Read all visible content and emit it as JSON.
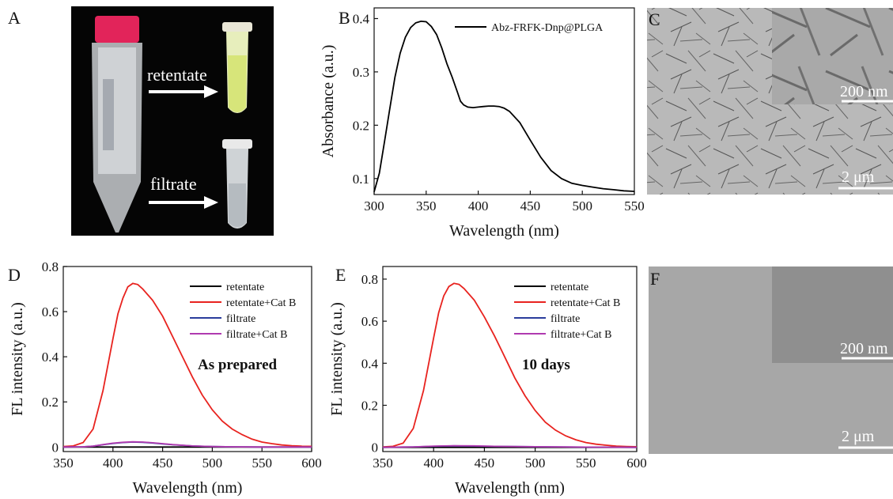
{
  "panels": {
    "A": {
      "letter": "A",
      "retentate_label": "retentate",
      "filtrate_label": "filtrate"
    },
    "B": {
      "letter": "B"
    },
    "C": {
      "letter": "C",
      "inset_scale": "200 nm",
      "main_scale": "2 μm"
    },
    "D": {
      "letter": "D",
      "annotation": "As prepared"
    },
    "E": {
      "letter": "E",
      "annotation": "10 days"
    },
    "F": {
      "letter": "F",
      "inset_scale": "200 nm",
      "main_scale": "2 μm"
    }
  },
  "chart_data": [
    {
      "id": "B",
      "type": "line",
      "xlabel": "Wavelength (nm)",
      "ylabel": "Absorbance (a.u.)",
      "xlim": [
        300,
        550
      ],
      "ylim": [
        0.07,
        0.42
      ],
      "xticks": [
        300,
        350,
        400,
        450,
        500,
        550
      ],
      "yticks": [
        0.1,
        0.2,
        0.3,
        0.4
      ],
      "ytick_labels": [
        "0.1",
        "0.2",
        "0.3",
        "0.4"
      ],
      "legend_position": "top-right",
      "series": [
        {
          "name": "Abz-FRFK-Dnp@PLGA",
          "color": "#000000",
          "x": [
            300,
            305,
            310,
            315,
            320,
            325,
            330,
            335,
            340,
            345,
            350,
            355,
            360,
            365,
            370,
            375,
            380,
            383,
            386,
            390,
            395,
            400,
            405,
            410,
            415,
            420,
            425,
            430,
            440,
            450,
            460,
            470,
            480,
            490,
            500,
            510,
            520,
            530,
            540,
            550
          ],
          "y": [
            0.075,
            0.11,
            0.17,
            0.23,
            0.29,
            0.335,
            0.365,
            0.383,
            0.392,
            0.395,
            0.394,
            0.385,
            0.37,
            0.345,
            0.315,
            0.29,
            0.262,
            0.245,
            0.238,
            0.234,
            0.233,
            0.234,
            0.235,
            0.236,
            0.236,
            0.235,
            0.232,
            0.226,
            0.205,
            0.172,
            0.14,
            0.115,
            0.1,
            0.091,
            0.087,
            0.084,
            0.081,
            0.079,
            0.077,
            0.076
          ]
        }
      ]
    },
    {
      "id": "D",
      "type": "line",
      "xlabel": "Wavelength (nm)",
      "ylabel": "FL intensity (a.u.)",
      "xlim": [
        350,
        600
      ],
      "ylim": [
        -0.02,
        0.8
      ],
      "xticks": [
        350,
        400,
        450,
        500,
        550,
        600
      ],
      "yticks": [
        0,
        0.2,
        0.4,
        0.6,
        0.8
      ],
      "ytick_labels": [
        "0",
        "0.2",
        "0.4",
        "0.6",
        "0.8"
      ],
      "legend_position": "top-right",
      "series": [
        {
          "name": "retentate",
          "color": "#000000",
          "x": [
            350,
            400,
            450,
            500,
            550,
            600
          ],
          "y": [
            0,
            0,
            0,
            0,
            0,
            0
          ]
        },
        {
          "name": "retentate+Cat B",
          "color": "#e8231f",
          "x": [
            350,
            360,
            370,
            380,
            390,
            400,
            405,
            410,
            415,
            420,
            425,
            430,
            440,
            450,
            460,
            470,
            480,
            490,
            500,
            510,
            520,
            530,
            540,
            550,
            560,
            570,
            580,
            590,
            600
          ],
          "y": [
            0.002,
            0.005,
            0.02,
            0.08,
            0.25,
            0.48,
            0.59,
            0.66,
            0.71,
            0.725,
            0.72,
            0.7,
            0.65,
            0.58,
            0.49,
            0.4,
            0.31,
            0.23,
            0.165,
            0.115,
            0.08,
            0.055,
            0.035,
            0.022,
            0.015,
            0.009,
            0.006,
            0.004,
            0.003
          ]
        },
        {
          "name": "filtrate",
          "color": "#2a3c9c",
          "x": [
            350,
            370,
            380,
            390,
            400,
            410,
            420,
            430,
            440,
            450,
            460,
            480,
            500,
            520,
            550,
            580,
            600
          ],
          "y": [
            0,
            0.001,
            0.004,
            0.01,
            0.016,
            0.02,
            0.022,
            0.021,
            0.018,
            0.014,
            0.01,
            0.005,
            0.002,
            0.001,
            0,
            0,
            0
          ]
        },
        {
          "name": "filtrate+Cat B",
          "color": "#b03ab0",
          "x": [
            350,
            370,
            380,
            390,
            400,
            410,
            420,
            430,
            440,
            450,
            460,
            480,
            500,
            520,
            550,
            580,
            600
          ],
          "y": [
            0,
            0.001,
            0.004,
            0.011,
            0.017,
            0.021,
            0.023,
            0.022,
            0.019,
            0.015,
            0.011,
            0.005,
            0.002,
            0.001,
            0,
            0,
            0
          ]
        }
      ]
    },
    {
      "id": "E",
      "type": "line",
      "xlabel": "Wavelength (nm)",
      "ylabel": "FL intensity (a.u.)",
      "xlim": [
        350,
        600
      ],
      "ylim": [
        -0.02,
        0.86
      ],
      "xticks": [
        350,
        400,
        450,
        500,
        550,
        600
      ],
      "yticks": [
        0,
        0.2,
        0.4,
        0.6,
        0.8
      ],
      "ytick_labels": [
        "0",
        "0.2",
        "0.4",
        "0.6",
        "0.8"
      ],
      "legend_position": "top-right",
      "series": [
        {
          "name": "retentate",
          "color": "#000000",
          "x": [
            350,
            400,
            450,
            500,
            550,
            600
          ],
          "y": [
            0,
            0,
            0,
            0,
            0,
            0
          ]
        },
        {
          "name": "retentate+Cat B",
          "color": "#e8231f",
          "x": [
            350,
            360,
            370,
            380,
            390,
            400,
            405,
            410,
            415,
            420,
            425,
            430,
            440,
            450,
            460,
            470,
            480,
            490,
            500,
            510,
            520,
            530,
            540,
            550,
            560,
            570,
            580,
            590,
            600
          ],
          "y": [
            0.002,
            0.005,
            0.02,
            0.09,
            0.27,
            0.52,
            0.64,
            0.72,
            0.765,
            0.78,
            0.775,
            0.755,
            0.7,
            0.62,
            0.53,
            0.43,
            0.33,
            0.245,
            0.175,
            0.12,
            0.082,
            0.055,
            0.036,
            0.023,
            0.015,
            0.01,
            0.006,
            0.004,
            0.003
          ]
        },
        {
          "name": "filtrate",
          "color": "#2a3c9c",
          "x": [
            350,
            380,
            400,
            420,
            440,
            460,
            500,
            550,
            600
          ],
          "y": [
            0,
            0.002,
            0.005,
            0.007,
            0.006,
            0.005,
            0.003,
            0.001,
            0
          ]
        },
        {
          "name": "filtrate+Cat B",
          "color": "#b03ab0",
          "x": [
            350,
            380,
            400,
            420,
            440,
            460,
            500,
            550,
            600
          ],
          "y": [
            0,
            0.002,
            0.006,
            0.008,
            0.007,
            0.005,
            0.003,
            0.001,
            0
          ]
        }
      ]
    }
  ]
}
